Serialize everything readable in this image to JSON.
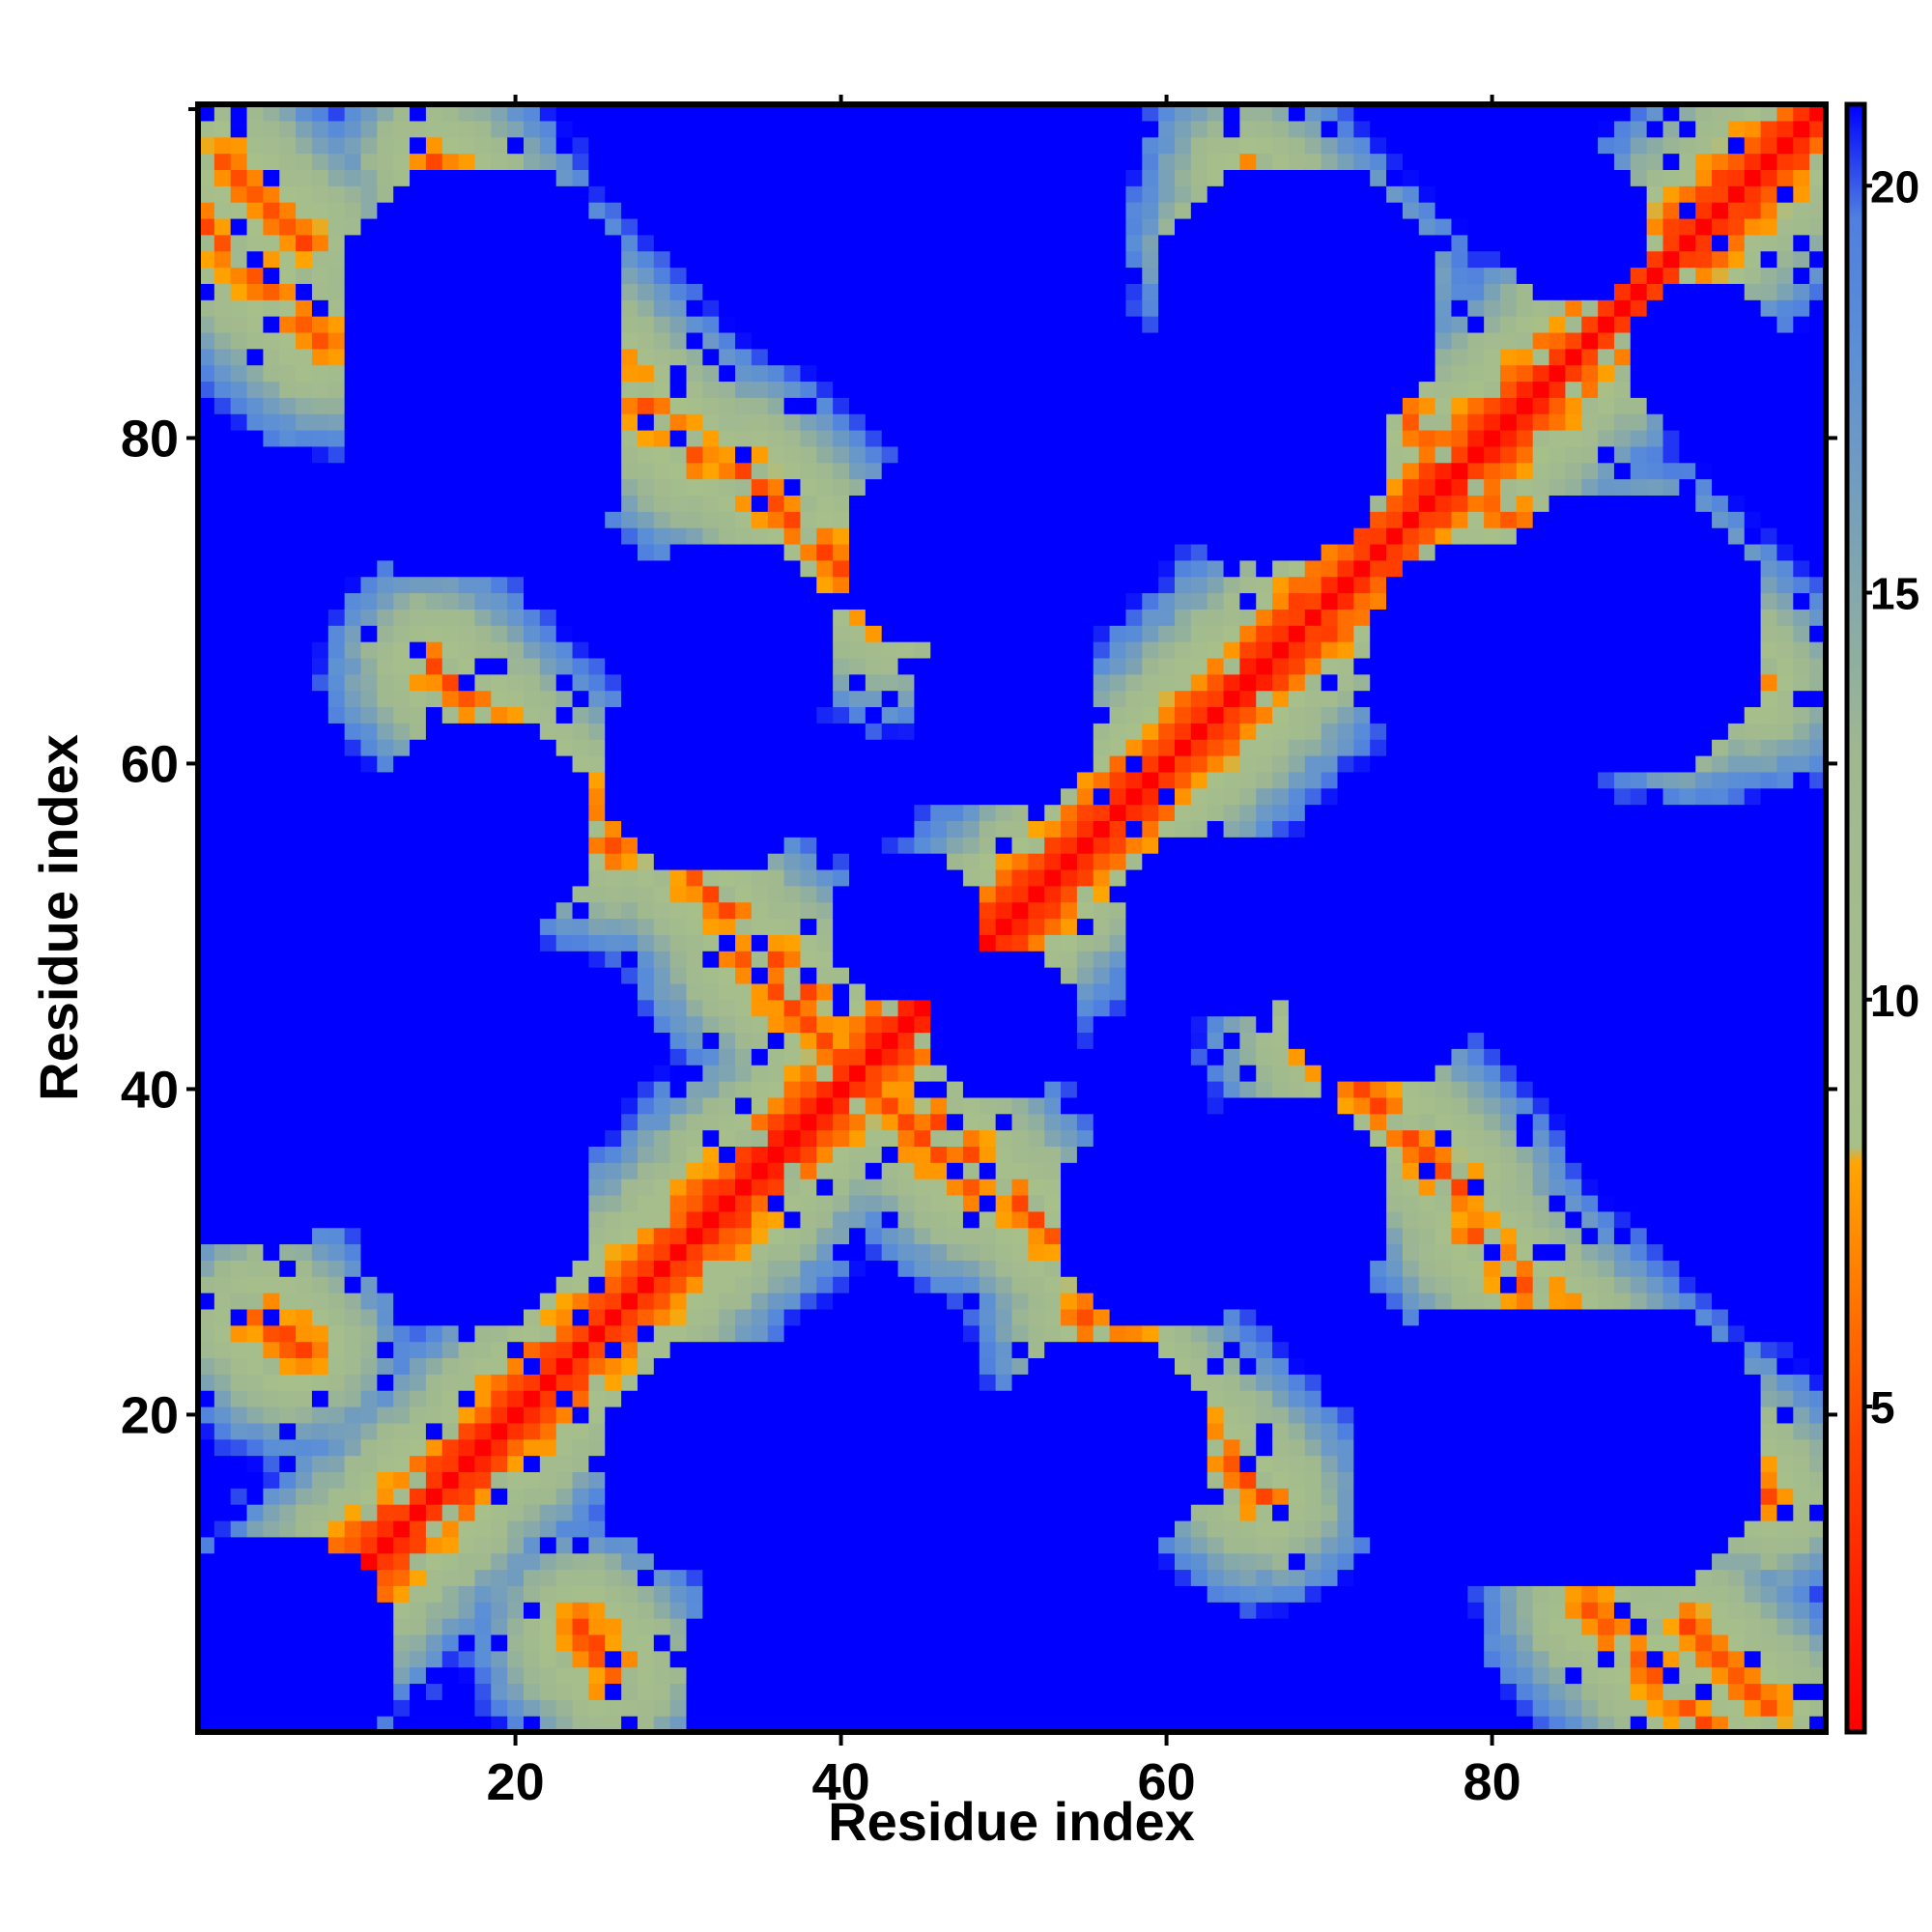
{
  "chart_data": {
    "type": "heatmap",
    "title": "",
    "xlabel": "Residue index",
    "ylabel": "Residue index",
    "n": 100,
    "xlim": [
      1,
      100
    ],
    "ylim": [
      1,
      100
    ],
    "xticks": [
      20,
      40,
      60,
      80
    ],
    "xtick_labels": [
      "20",
      "40",
      "60",
      "80"
    ],
    "yticks": [
      20,
      40,
      60,
      80
    ],
    "ytick_labels": [
      "20",
      "40",
      "60",
      "80"
    ],
    "colorbar": {
      "ticks": [
        5,
        10,
        15,
        20
      ],
      "tick_labels": [
        "5",
        "10",
        "15",
        "20"
      ],
      "range": [
        1,
        21
      ],
      "colors": [
        {
          "stop": 0.0,
          "color": "#ff0000"
        },
        {
          "stop": 0.18,
          "color": "#ff4500"
        },
        {
          "stop": 0.35,
          "color": "#ffa500"
        },
        {
          "stop": 0.36,
          "color": "#a7c08a"
        },
        {
          "stop": 0.6,
          "color": "#a0b890"
        },
        {
          "stop": 0.85,
          "color": "#5b8fd6"
        },
        {
          "stop": 0.93,
          "color": "#4f7fe0"
        },
        {
          "stop": 1.0,
          "color": "#0000ff"
        }
      ]
    },
    "description_note": "",
    "diagonal_value": 1,
    "cap_value": 21,
    "lobes": [
      {
        "a": 2,
        "b": 97,
        "len": 6
      },
      {
        "a": 20,
        "b": 90,
        "len": 12
      },
      {
        "a": 26,
        "b": 58,
        "len": 8
      },
      {
        "a": 34,
        "b": 78,
        "len": 10
      },
      {
        "a": 36,
        "b": 48,
        "len": 3
      },
      {
        "a": 38,
        "b": 44,
        "len": 3
      },
      {
        "a": 45,
        "b": 37,
        "len": 4
      },
      {
        "a": 55,
        "b": 26,
        "len": 12
      },
      {
        "a": 65,
        "b": 96,
        "len": 8
      },
      {
        "a": 70,
        "b": 42,
        "len": 9
      },
      {
        "a": 78,
        "b": 78,
        "len": 2
      },
      {
        "a": 79,
        "b": 77,
        "len": 14
      },
      {
        "a": 86,
        "b": 8,
        "len": 8
      },
      {
        "a": 94,
        "b": 18,
        "len": 4
      },
      {
        "a": 24,
        "b": 6,
        "len": 3
      },
      {
        "a": 5,
        "b": 26,
        "len": 3
      }
    ],
    "holes": [
      {
        "cx": 18,
        "cy": 80,
        "r": 9
      },
      {
        "cx": 15,
        "cy": 47,
        "r": 7
      },
      {
        "cx": 17,
        "cy": 32,
        "r": 7
      },
      {
        "cx": 33,
        "cy": 67,
        "r": 7
      },
      {
        "cx": 41,
        "cy": 18,
        "r": 7
      },
      {
        "cx": 33,
        "cy": 18,
        "r": 7
      },
      {
        "cx": 56,
        "cy": 18,
        "r": 7
      },
      {
        "cx": 60,
        "cy": 32,
        "r": 7
      },
      {
        "cx": 63,
        "cy": 50,
        "r": 6
      },
      {
        "cx": 66,
        "cy": 80,
        "r": 8
      },
      {
        "cx": 88,
        "cy": 68,
        "r": 9
      },
      {
        "cx": 88,
        "cy": 18,
        "r": 9
      },
      {
        "cx": 93,
        "cy": 85,
        "r": 5
      },
      {
        "cx": 5,
        "cy": 5,
        "r": 8
      },
      {
        "cx": 38,
        "cy": 4,
        "r": 8
      },
      {
        "cx": 93,
        "cy": 43,
        "r": 6
      },
      {
        "cx": 93,
        "cy": 52,
        "r": 6
      },
      {
        "cx": 46,
        "cy": 73,
        "r": 6
      },
      {
        "cx": 50,
        "cy": 44,
        "r": 5
      },
      {
        "cx": 40,
        "cy": 98,
        "r": 7
      },
      {
        "cx": 3,
        "cy": 70,
        "r": 5
      },
      {
        "cx": 3,
        "cy": 45,
        "r": 4
      }
    ]
  }
}
